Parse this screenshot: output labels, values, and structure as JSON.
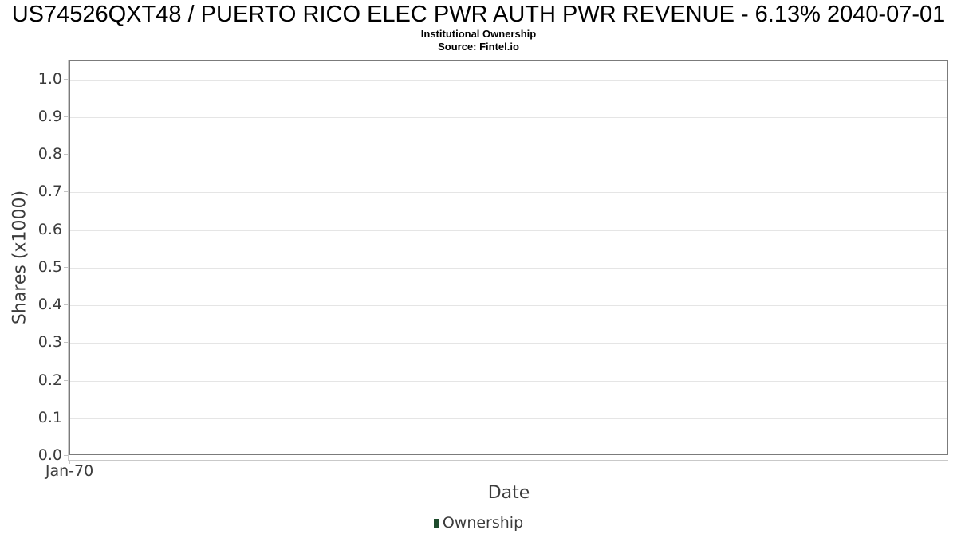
{
  "chart_data": {
    "type": "bar",
    "title": "US74526QXT48 / PUERTO RICO ELEC PWR AUTH PWR REVENUE - 6.13% 2040-07-01",
    "subtitle": "Institutional Ownership",
    "source": "Source: Fintel.io",
    "xlabel": "Date",
    "ylabel": "Shares (x1000)",
    "ylim": [
      0.0,
      1.05
    ],
    "grid": true,
    "legend_position": "bottom",
    "y_ticks": [
      {
        "value": 0.0,
        "label": "0.0"
      },
      {
        "value": 0.1,
        "label": "0.1"
      },
      {
        "value": 0.2,
        "label": "0.2"
      },
      {
        "value": 0.3,
        "label": "0.3"
      },
      {
        "value": 0.4,
        "label": "0.4"
      },
      {
        "value": 0.5,
        "label": "0.5"
      },
      {
        "value": 0.6,
        "label": "0.6"
      },
      {
        "value": 0.7,
        "label": "0.7"
      },
      {
        "value": 0.8,
        "label": "0.8"
      },
      {
        "value": 0.9,
        "label": "0.9"
      },
      {
        "value": 1.0,
        "label": "1.0"
      }
    ],
    "x_ticks": [
      {
        "label": "Jan-70",
        "pos": 0
      }
    ],
    "categories": [],
    "series": [
      {
        "name": "Ownership",
        "color": "#1d4b2c",
        "values": []
      }
    ]
  }
}
